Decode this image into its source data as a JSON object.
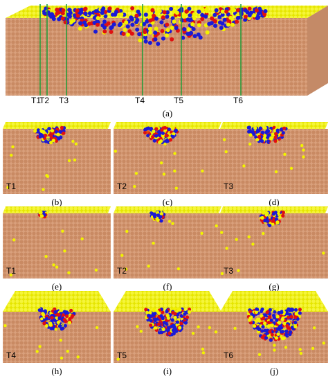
{
  "colors": {
    "substrate": "#d9a07c",
    "surface": "#f2f200",
    "atom_blue": "#1a1ad6",
    "atom_red": "#e01010",
    "guide_line": "#1e9e3a"
  },
  "top_panel": {
    "tick_labels": [
      "T1",
      "T2",
      "T3",
      "T4",
      "T5",
      "T6"
    ],
    "caption": "(a)"
  },
  "rows": [
    {
      "panels": [
        {
          "label": "T1",
          "caption": "(b)"
        },
        {
          "label": "T2",
          "caption": "(c)"
        },
        {
          "label": "T3",
          "caption": "(d)"
        }
      ]
    },
    {
      "panels": [
        {
          "label": "T1",
          "caption": "(e)"
        },
        {
          "label": "T2",
          "caption": "(f)"
        },
        {
          "label": "T3",
          "caption": "(g)"
        }
      ]
    },
    {
      "panels": [
        {
          "label": "T4",
          "caption": "(h)"
        },
        {
          "label": "T5",
          "caption": "(i)"
        },
        {
          "label": "T6",
          "caption": "(j)"
        }
      ]
    }
  ]
}
